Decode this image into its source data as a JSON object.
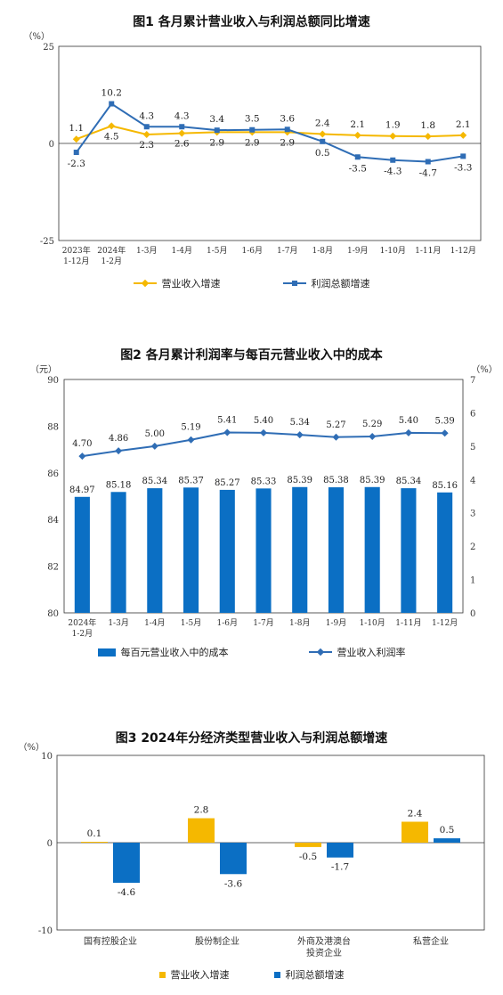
{
  "chart_data": [
    {
      "type": "line",
      "title": "图1  各月累计营业收入与利润总额同比增速",
      "unit_label": "（%）",
      "ylim": [
        -25,
        25
      ],
      "yticks": [
        -25,
        0,
        25
      ],
      "categories": [
        [
          "2023年",
          "1-12月"
        ],
        [
          "2024年",
          "1-2月"
        ],
        [
          "1-3月"
        ],
        [
          "1-4月"
        ],
        [
          "1-5月"
        ],
        [
          "1-6月"
        ],
        [
          "1-7月"
        ],
        [
          "1-8月"
        ],
        [
          "1-9月"
        ],
        [
          "1-10月"
        ],
        [
          "1-11月"
        ],
        [
          "1-12月"
        ]
      ],
      "series": [
        {
          "name": "营业收入增速",
          "color": "#f5b800",
          "marker": "diamond",
          "values": [
            1.1,
            4.5,
            2.3,
            2.6,
            2.9,
            2.9,
            2.9,
            2.4,
            2.1,
            1.9,
            1.8,
            2.1
          ]
        },
        {
          "name": "利润总额增速",
          "color": "#2f6db5",
          "marker": "square",
          "values": [
            -2.3,
            10.2,
            4.3,
            4.3,
            3.4,
            3.5,
            3.6,
            0.5,
            -3.5,
            -4.3,
            -4.7,
            -3.3
          ]
        }
      ],
      "legend_position": "bottom"
    },
    {
      "type": "bar+line",
      "title": "图2  各月累计利润率与每百元营业收入中的成本",
      "left_unit_label": "（元）",
      "right_unit_label": "（%）",
      "ylim_left": [
        80,
        90
      ],
      "yticks_left": [
        80,
        82,
        84,
        86,
        88,
        90
      ],
      "ylim_right": [
        0,
        7
      ],
      "yticks_right": [
        0,
        1,
        2,
        3,
        4,
        5,
        6,
        7
      ],
      "categories": [
        [
          "2024年",
          "1-2月"
        ],
        [
          "1-3月"
        ],
        [
          "1-4月"
        ],
        [
          "1-5月"
        ],
        [
          "1-6月"
        ],
        [
          "1-7月"
        ],
        [
          "1-8月"
        ],
        [
          "1-9月"
        ],
        [
          "1-10月"
        ],
        [
          "1-11月"
        ],
        [
          "1-12月"
        ]
      ],
      "bar_series": {
        "name": "每百元营业收入中的成本",
        "color": "#0b6fc4",
        "values": [
          84.97,
          85.18,
          85.34,
          85.37,
          85.27,
          85.33,
          85.39,
          85.38,
          85.39,
          85.34,
          85.16
        ],
        "labels": [
          "84.97",
          "85.18",
          "85.34",
          "85.37",
          "85.27",
          "85.33",
          "85.39",
          "85.38",
          "85.39",
          "85.34",
          "85.16"
        ]
      },
      "line_series": {
        "name": "营业收入利润率",
        "color": "#2f6db5",
        "values": [
          4.7,
          4.86,
          5.0,
          5.19,
          5.41,
          5.4,
          5.34,
          5.27,
          5.29,
          5.4,
          5.39
        ],
        "labels": [
          "4.70",
          "4.86",
          "5.00",
          "5.19",
          "5.41",
          "5.40",
          "5.34",
          "5.27",
          "5.29",
          "5.40",
          "5.39"
        ]
      },
      "legend_position": "bottom"
    },
    {
      "type": "bar",
      "title": "图3  2024年分经济类型营业收入与利润总额增速",
      "unit_label": "（%）",
      "ylim": [
        -10,
        10
      ],
      "yticks": [
        -10,
        0,
        10
      ],
      "categories": [
        [
          "国有控股企业"
        ],
        [
          "股份制企业"
        ],
        [
          "外商及港澳台",
          "投资企业"
        ],
        [
          "私营企业"
        ]
      ],
      "series": [
        {
          "name": "营业收入增速",
          "color": "#f5b800",
          "values": [
            0.1,
            2.8,
            -0.5,
            2.4
          ]
        },
        {
          "name": "利润总额增速",
          "color": "#0b6fc4",
          "values": [
            -4.6,
            -3.6,
            -1.7,
            0.5
          ]
        }
      ],
      "legend_position": "bottom"
    }
  ]
}
